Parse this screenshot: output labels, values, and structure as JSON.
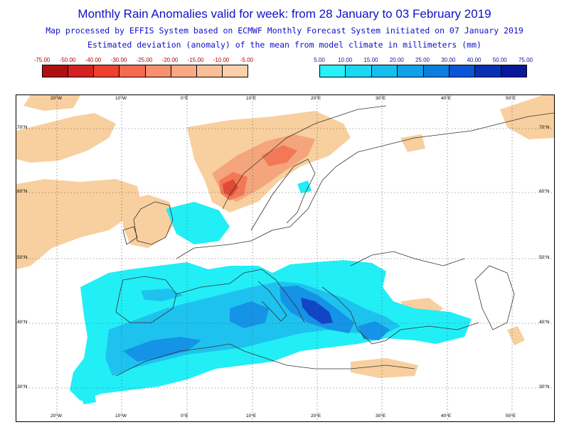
{
  "header": {
    "title": "Monthly Rain Anomalies valid for week: from 28 January to 03 February 2019",
    "line1": "Map processed by EFFIS System based on ECMWF Monthly Forecast System initiated on 07 January 2019",
    "line2": "Estimated deviation (anomaly) of the mean from model climate in millimeters (mm)"
  },
  "legend_negative": {
    "labels": [
      "-75.00",
      "-50.00",
      "-40.00",
      "-30.00",
      "-25.00",
      "-20.00",
      "-15.00",
      "-10.00",
      "-5.00"
    ],
    "colors": [
      "#b11010",
      "#d42222",
      "#ef3f2f",
      "#f66a4f",
      "#f7906f",
      "#f9a985",
      "#fbbf98",
      "#fcd0ab"
    ]
  },
  "legend_positive": {
    "labels": [
      "5.00",
      "10.00",
      "15.00",
      "20.00",
      "25.00",
      "30.00",
      "40.00",
      "50.00",
      "75.00"
    ],
    "colors": [
      "#28f0f8",
      "#18d8f4",
      "#14c0f0",
      "#0fa2ea",
      "#0a7fe0",
      "#0a56d6",
      "#0830b4",
      "#07189a"
    ]
  },
  "map": {
    "lon_labels": [
      "20°W",
      "10°W",
      "0°E",
      "10°E",
      "20°E",
      "30°E",
      "40°E",
      "50°E"
    ],
    "lat_labels": [
      "70°N",
      "60°N",
      "50°N",
      "40°N",
      "30°N"
    ],
    "colors": {
      "dry_light": "#f8cf9e",
      "dry_mid": "#f5a57b",
      "dry_strong": "#f27857",
      "dry_max": "#e04a35",
      "wet_light": "#22eef6",
      "wet_mid": "#1ec2ef",
      "wet_strong": "#1593e6",
      "wet_max": "#1244c6"
    }
  }
}
